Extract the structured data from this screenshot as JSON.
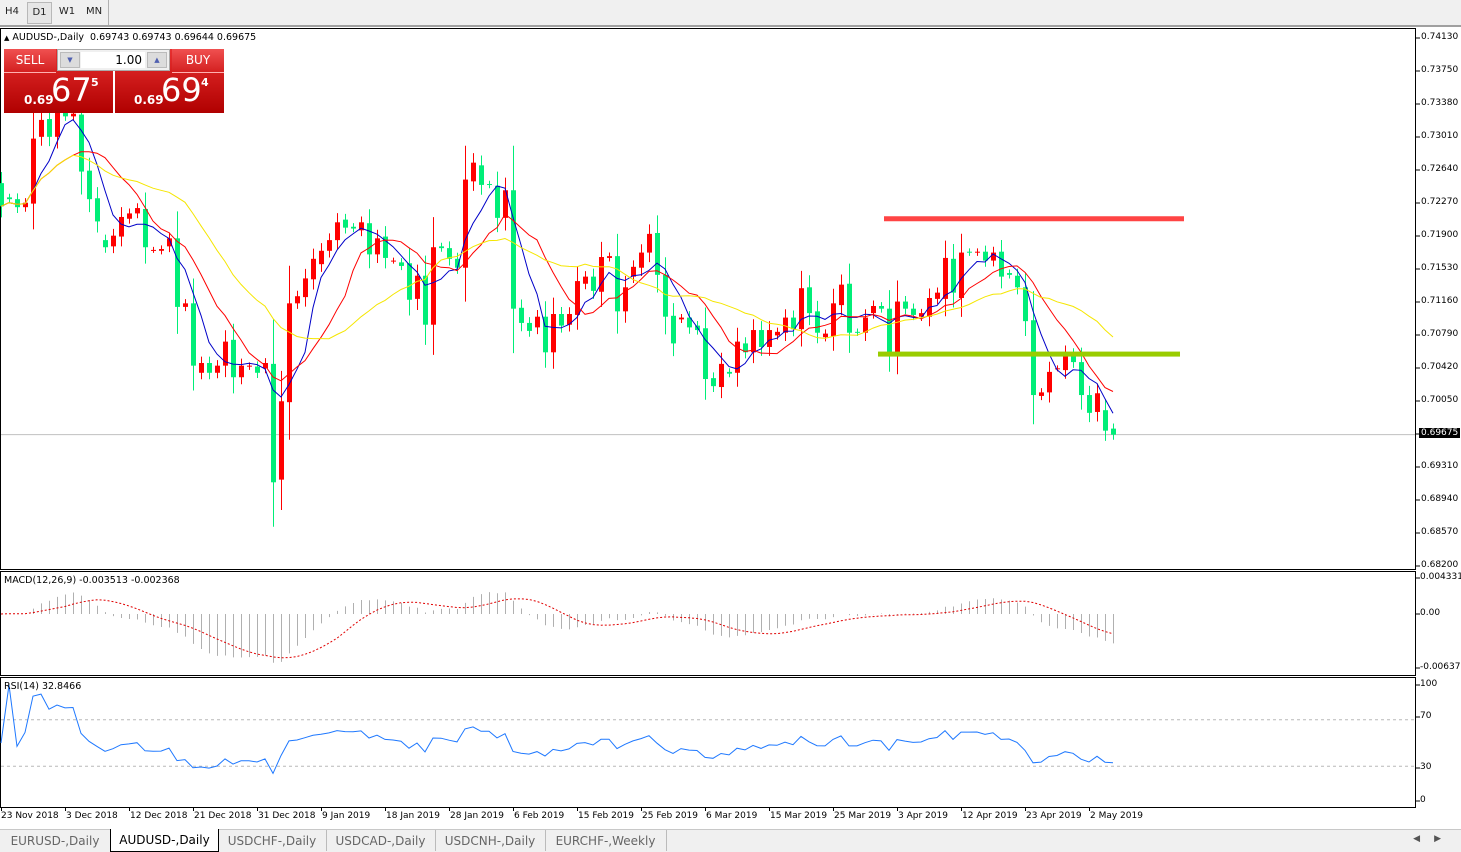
{
  "toolbar": {
    "timeframes": [
      "H4",
      "D1",
      "W1",
      "MN"
    ],
    "active": "D1"
  },
  "chart": {
    "symbol": "AUDUSD-,Daily",
    "ohlc": "0.69743 0.69743 0.69644 0.69675",
    "price_axis": [
      "0.74130",
      "0.73750",
      "0.73380",
      "0.73010",
      "0.72640",
      "0.72270",
      "0.71900",
      "0.71530",
      "0.71160",
      "0.70790",
      "0.70420",
      "0.70050",
      "0.69675",
      "0.69310",
      "0.68940",
      "0.68570",
      "0.68200"
    ],
    "current_price": "0.69675",
    "levels": [
      {
        "name": "resistance",
        "price": 0.721,
        "color": "#ff4444"
      },
      {
        "name": "support",
        "price": 0.7058,
        "color": "#99cc00"
      }
    ],
    "colors": {
      "bear": "#00ee78",
      "bull": "#ff0000",
      "ma_fast": "#0000c8",
      "ma_mid": "#ff0000",
      "ma_slow": "#f5e600"
    }
  },
  "trade": {
    "sell_label": "SELL",
    "buy_label": "BUY",
    "lot": "1.00",
    "sell_prefix": "0.69",
    "sell_big": "67",
    "sell_sup": "5",
    "buy_prefix": "0.69",
    "buy_big": "69",
    "buy_sup": "4"
  },
  "macd": {
    "label": "MACD(12,26,9) -0.003513 -0.002368",
    "axis": [
      "0.004331",
      "0.00",
      "-0.006373"
    ]
  },
  "rsi": {
    "label": "RSI(14) 32.8466",
    "axis": [
      "100",
      "70",
      "30",
      "0"
    ]
  },
  "dates": [
    "23 Nov 2018",
    "3 Dec 2018",
    "12 Dec 2018",
    "21 Dec 2018",
    "31 Dec 2018",
    "9 Jan 2019",
    "18 Jan 2019",
    "28 Jan 2019",
    "6 Feb 2019",
    "15 Feb 2019",
    "25 Feb 2019",
    "6 Mar 2019",
    "15 Mar 2019",
    "25 Mar 2019",
    "3 Apr 2019",
    "12 Apr 2019",
    "23 Apr 2019",
    "2 May 2019"
  ],
  "tabs": [
    "EURUSD-,Daily",
    "AUDUSD-,Daily",
    "USDCHF-,Daily",
    "USDCAD-,Daily",
    "USDCNH-,Daily",
    "EURCHF-,Weekly"
  ],
  "active_tab": 1,
  "chart_data": {
    "type": "candlestick",
    "ylim": [
      0.682,
      0.7413
    ],
    "moving_averages": [
      5,
      10,
      20
    ],
    "open": [
      0.725,
      0.7234,
      0.7232,
      0.7223,
      0.7227,
      0.7302,
      0.7322,
      0.7302,
      0.733,
      0.7325,
      0.7327,
      0.7264,
      0.7233,
      0.7186,
      0.7179,
      0.719,
      0.721,
      0.7216,
      0.7221,
      0.7175,
      0.7174,
      0.7179,
      0.7188,
      0.7111,
      0.7115,
      0.7037,
      0.7048,
      0.7037,
      0.7045,
      0.7074,
      0.7032,
      0.7044,
      0.7044,
      0.7042,
      0.7047,
      0.6917,
      0.7004,
      0.7115,
      0.7122,
      0.7142,
      0.7159,
      0.7174,
      0.7186,
      0.7209,
      0.7201,
      0.7197,
      0.7205,
      0.717,
      0.719,
      0.7163,
      0.7161,
      0.716,
      0.712,
      0.7146,
      0.7091,
      0.7179,
      0.7177,
      0.7165,
      0.7155,
      0.7252,
      0.727,
      0.7249,
      0.7247,
      0.7211,
      0.7242,
      0.711,
      0.7093,
      0.7088,
      0.71,
      0.706,
      0.7103,
      0.7091,
      0.7102,
      0.7137,
      0.7145,
      0.7128,
      0.7166,
      0.7168,
      0.7106,
      0.7145,
      0.7155,
      0.7172,
      0.7194,
      0.7147,
      0.7101,
      0.7097,
      0.7099,
      0.709,
      0.7087,
      0.7031,
      0.7021,
      0.7038,
      0.7037,
      0.707,
      0.706,
      0.7085,
      0.7066,
      0.7079,
      0.7082,
      0.7099,
      0.7086,
      0.7133,
      0.7106,
      0.7077,
      0.7078,
      0.7113,
      0.7137,
      0.7083,
      0.7082,
      0.7104,
      0.7112,
      0.7109,
      0.7059,
      0.7117,
      0.7109,
      0.71,
      0.71,
      0.712,
      0.712,
      0.7165,
      0.7121,
      0.7173,
      0.7172,
      0.7173,
      0.7163,
      0.7173,
      0.7149,
      0.7146,
      0.7133,
      0.7096,
      0.7011,
      0.7015,
      0.7042,
      0.704,
      0.7058,
      0.7049,
      0.7012,
      0.6993,
      0.6995,
      0.69743
    ],
    "close": [
      0.7224,
      0.7232,
      0.7223,
      0.7228,
      0.73,
      0.7321,
      0.7302,
      0.733,
      0.7325,
      0.7328,
      0.7263,
      0.7232,
      0.7207,
      0.7178,
      0.7191,
      0.7212,
      0.7216,
      0.7222,
      0.7178,
      0.7175,
      0.7176,
      0.7188,
      0.7111,
      0.7115,
      0.7045,
      0.7048,
      0.7037,
      0.7045,
      0.7072,
      0.7032,
      0.7045,
      0.7045,
      0.7037,
      0.7048,
      0.6914,
      0.7005,
      0.7115,
      0.7123,
      0.7143,
      0.7165,
      0.7174,
      0.7186,
      0.7206,
      0.72,
      0.7199,
      0.7206,
      0.717,
      0.7188,
      0.7166,
      0.7163,
      0.7157,
      0.7119,
      0.7146,
      0.7091,
      0.7178,
      0.7177,
      0.7165,
      0.7155,
      0.7254,
      0.7273,
      0.7248,
      0.7248,
      0.7211,
      0.7242,
      0.7109,
      0.7093,
      0.7084,
      0.71,
      0.706,
      0.7103,
      0.709,
      0.7103,
      0.714,
      0.7145,
      0.7129,
      0.7167,
      0.7168,
      0.7106,
      0.7133,
      0.7156,
      0.7172,
      0.7193,
      0.7147,
      0.71,
      0.707,
      0.7099,
      0.7088,
      0.7085,
      0.703,
      0.7022,
      0.7047,
      0.7036,
      0.7072,
      0.706,
      0.7085,
      0.7066,
      0.7085,
      0.7083,
      0.7099,
      0.7086,
      0.7132,
      0.7104,
      0.7082,
      0.7081,
      0.7115,
      0.7136,
      0.7082,
      0.7082,
      0.7099,
      0.7112,
      0.7109,
      0.7059,
      0.7117,
      0.7109,
      0.7102,
      0.7104,
      0.7121,
      0.7127,
      0.7166,
      0.7127,
      0.7172,
      0.7172,
      0.7173,
      0.7163,
      0.7172,
      0.7145,
      0.7147,
      0.7133,
      0.7095,
      0.7012,
      0.7015,
      0.7038,
      0.7042,
      0.7058,
      0.7049,
      0.7012,
      0.6992,
      0.7014,
      0.6972,
      0.69675
    ]
  }
}
